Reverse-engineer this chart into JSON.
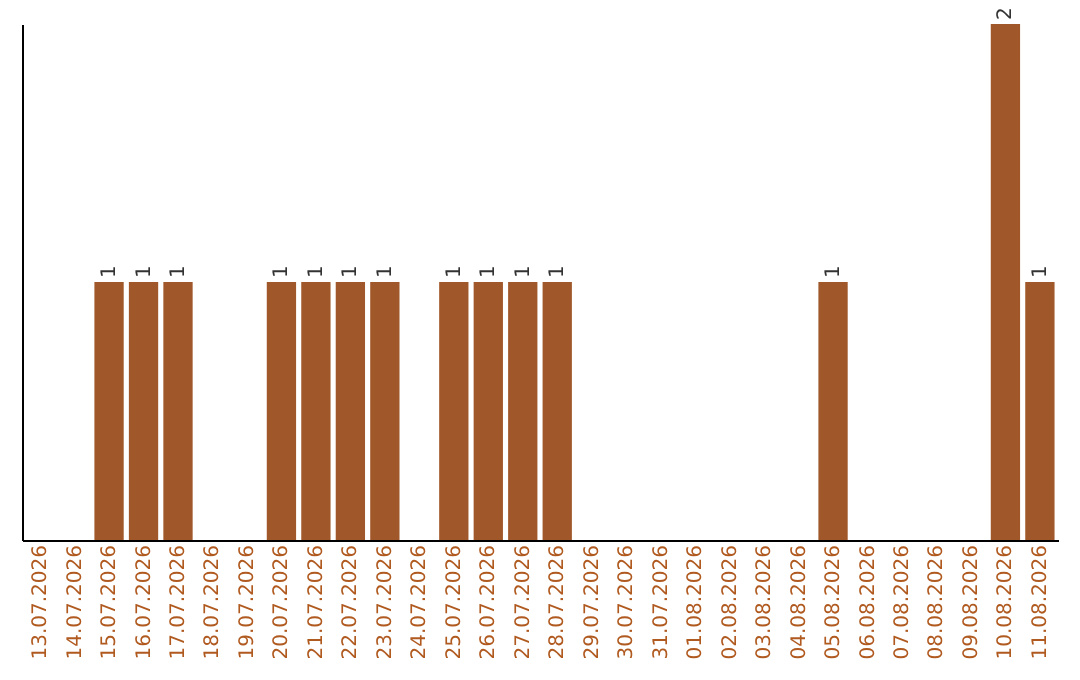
{
  "chart_data": {
    "type": "bar",
    "tick_labels": "x",
    "categories": [
      "13.07.2026",
      "14.07.2026",
      "15.07.2026",
      "16.07.2026",
      "17.07.2026",
      "18.07.2026",
      "19.07.2026",
      "20.07.2026",
      "21.07.2026",
      "22.07.2026",
      "23.07.2026",
      "24.07.2026",
      "25.07.2026",
      "26.07.2026",
      "27.07.2026",
      "28.07.2026",
      "29.07.2026",
      "30.07.2026",
      "31.07.2026",
      "01.08.2026",
      "02.08.2026",
      "03.08.2026",
      "04.08.2026",
      "05.08.2026",
      "06.08.2026",
      "07.08.2026",
      "08.08.2026",
      "09.08.2026",
      "10.08.2026",
      "11.08.2026"
    ],
    "values": [
      0,
      0,
      1,
      1,
      1,
      0,
      0,
      1,
      1,
      1,
      1,
      0,
      1,
      1,
      1,
      1,
      0,
      0,
      0,
      0,
      0,
      0,
      0,
      1,
      0,
      0,
      0,
      0,
      2,
      1
    ],
    "value_labels": [
      null,
      null,
      "1",
      "1",
      "1",
      null,
      null,
      "1",
      "1",
      "1",
      "1",
      null,
      "1",
      "1",
      "1",
      "1",
      null,
      null,
      null,
      null,
      null,
      null,
      null,
      "1",
      null,
      null,
      null,
      null,
      "2",
      "1"
    ],
    "color": "#a0582a"
  }
}
